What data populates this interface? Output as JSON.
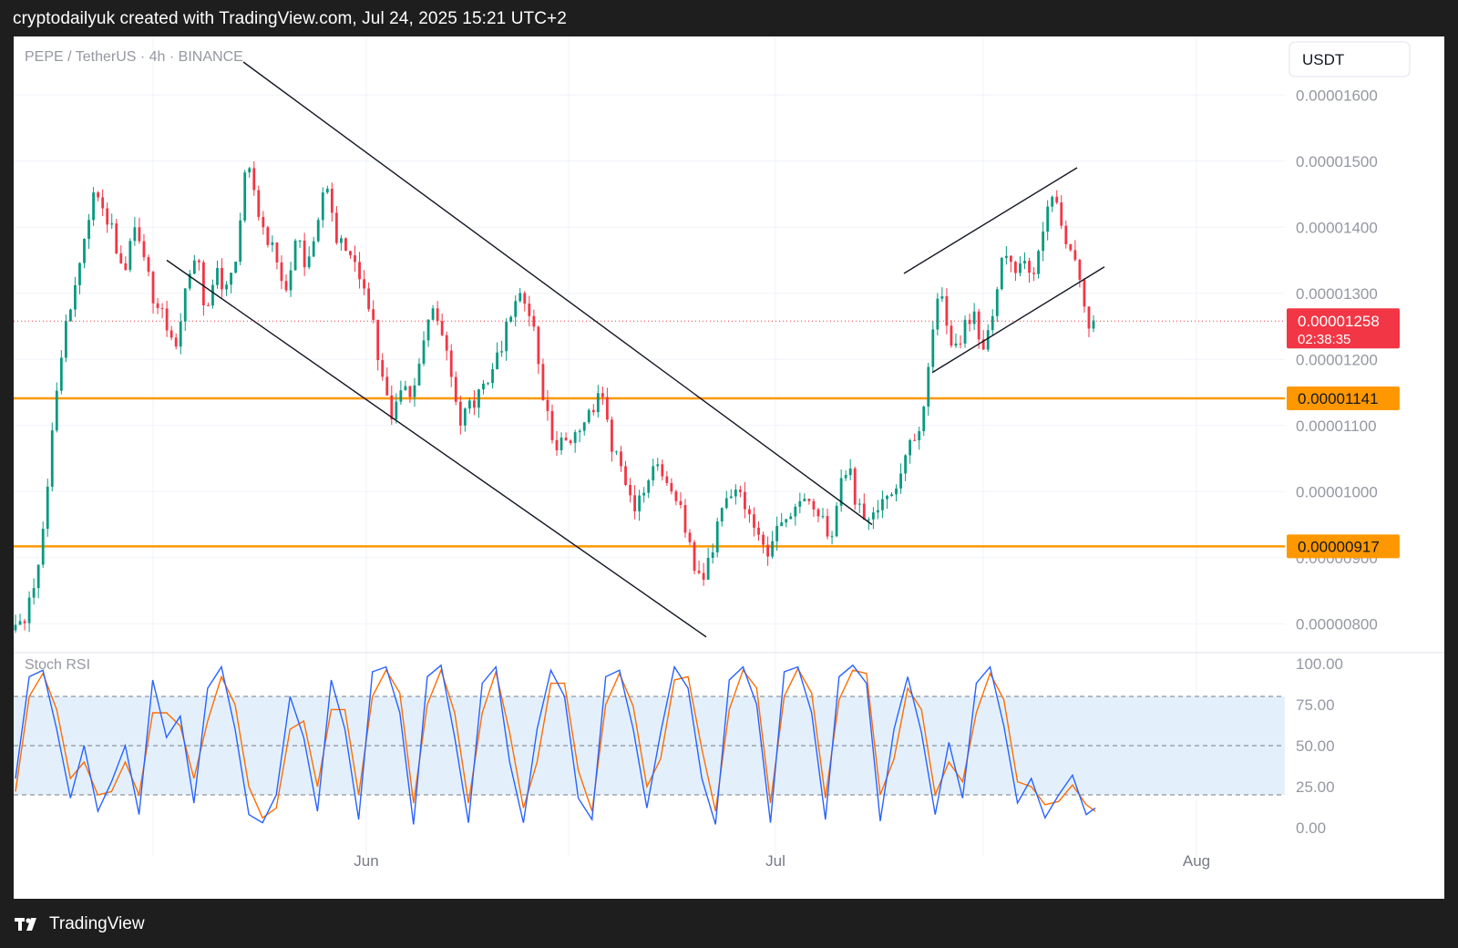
{
  "caption": "cryptodailyuk created with TradingView.com, Jul 24, 2025 15:21 UTC+2",
  "footer_brand": "TradingView",
  "colors": {
    "up": "#089981",
    "down": "#f23645",
    "level": "#ff9800",
    "stoch_k": "#2962ff",
    "stoch_d": "#ff6d00",
    "band": "#e3f0fc",
    "last_price": "#f23645"
  },
  "chart_data": [
    {
      "type": "candlestick",
      "symbol_line": "PEPE / TetherUS · 4h · BINANCE",
      "currency_button": "USDT",
      "ylim": [
        7.7e-06,
        1.65e-05
      ],
      "y_ticks": [
        "0.00000800",
        "0.00000900",
        "0.00001000",
        "0.00001100",
        "0.00001200",
        "0.00001300",
        "0.00001400",
        "0.00001500",
        "0.00001600"
      ],
      "x_ticks": [
        "Jun",
        "Jul",
        "Aug"
      ],
      "last_price": {
        "value": 1.258e-05,
        "label": "0.00001258",
        "countdown": "02:38:35"
      },
      "levels": [
        {
          "value": 1.141e-05,
          "label": "0.00001141"
        },
        {
          "value": 9.17e-06,
          "label": "0.00000917"
        }
      ],
      "series_path": [
        [
          0,
          7.9e-06
        ],
        [
          8,
          8.1e-06
        ],
        [
          16,
          8.8e-06
        ],
        [
          22,
          9.8e-06
        ],
        [
          28,
          1.12e-05
        ],
        [
          34,
          1.23e-05
        ],
        [
          42,
          1.3e-05
        ],
        [
          50,
          1.38e-05
        ],
        [
          56,
          1.46e-05
        ],
        [
          62,
          1.42e-05
        ],
        [
          70,
          1.39e-05
        ],
        [
          78,
          1.32e-05
        ],
        [
          86,
          1.41e-05
        ],
        [
          94,
          1.35e-05
        ],
        [
          100,
          1.28e-05
        ],
        [
          108,
          1.26e-05
        ],
        [
          114,
          1.2e-05
        ],
        [
          122,
          1.32e-05
        ],
        [
          130,
          1.37e-05
        ],
        [
          136,
          1.27e-05
        ],
        [
          144,
          1.34e-05
        ],
        [
          152,
          1.3e-05
        ],
        [
          160,
          1.38e-05
        ],
        [
          166,
          1.5e-05
        ],
        [
          172,
          1.45e-05
        ],
        [
          178,
          1.4e-05
        ],
        [
          186,
          1.36e-05
        ],
        [
          194,
          1.3e-05
        ],
        [
          202,
          1.38e-05
        ],
        [
          210,
          1.34e-05
        ],
        [
          218,
          1.43e-05
        ],
        [
          224,
          1.46e-05
        ],
        [
          230,
          1.39e-05
        ],
        [
          236,
          1.36e-05
        ],
        [
          242,
          1.37e-05
        ],
        [
          250,
          1.3e-05
        ],
        [
          256,
          1.26e-05
        ],
        [
          262,
          1.18e-05
        ],
        [
          270,
          1.12e-05
        ],
        [
          278,
          1.16e-05
        ],
        [
          286,
          1.15e-05
        ],
        [
          294,
          1.24e-05
        ],
        [
          300,
          1.27e-05
        ],
        [
          306,
          1.25e-05
        ],
        [
          312,
          1.2e-05
        ],
        [
          318,
          1.1e-05
        ],
        [
          326,
          1.13e-05
        ],
        [
          334,
          1.15e-05
        ],
        [
          342,
          1.18e-05
        ],
        [
          350,
          1.22e-05
        ],
        [
          358,
          1.3e-05
        ],
        [
          366,
          1.28e-05
        ],
        [
          372,
          1.25e-05
        ],
        [
          380,
          1.13e-05
        ],
        [
          388,
          1.06e-05
        ],
        [
          396,
          1.08e-05
        ],
        [
          404,
          1.1e-05
        ],
        [
          412,
          1.12e-05
        ],
        [
          420,
          1.15e-05
        ],
        [
          428,
          1.07e-05
        ],
        [
          436,
          1.03e-05
        ],
        [
          444,
          9.8e-06
        ],
        [
          452,
          1.01e-05
        ],
        [
          460,
          1.04e-05
        ],
        [
          468,
          1.02e-05
        ],
        [
          476,
          9.8e-06
        ],
        [
          482,
          9.4e-06
        ],
        [
          488,
          8.8e-06
        ],
        [
          494,
          8.6e-06
        ],
        [
          500,
          9.1e-06
        ],
        [
          508,
          9.9e-06
        ],
        [
          516,
          1.01e-05
        ],
        [
          524,
          9.7e-06
        ],
        [
          532,
          9.4e-06
        ],
        [
          540,
          9.1e-06
        ],
        [
          548,
          9.4e-06
        ],
        [
          556,
          9.7e-06
        ],
        [
          564,
          1e-05
        ],
        [
          572,
          9.9e-06
        ],
        [
          580,
          9.5e-06
        ],
        [
          586,
          9.3e-06
        ],
        [
          592,
          1.01e-05
        ],
        [
          598,
          1.04e-05
        ],
        [
          604,
          9.8e-06
        ],
        [
          612,
          9.6e-06
        ],
        [
          620,
          9.8e-06
        ],
        [
          628,
          1e-05
        ],
        [
          636,
          1.03e-05
        ],
        [
          644,
          1.08e-05
        ],
        [
          650,
          1.1e-05
        ],
        [
          654,
          1.17e-05
        ],
        [
          658,
          1.24e-05
        ],
        [
          664,
          1.3e-05
        ],
        [
          670,
          1.24e-05
        ],
        [
          676,
          1.22e-05
        ],
        [
          682,
          1.25e-05
        ],
        [
          688,
          1.27e-05
        ],
        [
          694,
          1.22e-05
        ],
        [
          700,
          1.26e-05
        ],
        [
          706,
          1.33e-05
        ],
        [
          712,
          1.37e-05
        ],
        [
          718,
          1.32e-05
        ],
        [
          724,
          1.36e-05
        ],
        [
          730,
          1.31e-05
        ],
        [
          736,
          1.38e-05
        ],
        [
          742,
          1.44e-05
        ],
        [
          748,
          1.43e-05
        ],
        [
          754,
          1.38e-05
        ],
        [
          760,
          1.36e-05
        ],
        [
          766,
          1.31e-05
        ],
        [
          770,
          1.25e-05
        ],
        [
          774,
          1.26e-05
        ]
      ],
      "trendlines": [
        {
          "name": "downtrend-channel-upper",
          "points": [
            [
              0,
              1.65e-05
            ],
            [
              1000,
              8.6e-06
            ]
          ]
        },
        {
          "name": "downtrend-channel-lower",
          "points": [
            [
              0,
              1.34e-05
            ],
            [
              1000,
              6.9e-06
            ]
          ]
        },
        {
          "name": "rising-channel-upper",
          "points": [
            [
              0,
              1.17e-05
            ],
            [
              1000,
              1.76e-05
            ]
          ]
        },
        {
          "name": "rising-channel-lower",
          "points": [
            [
              0,
              9.7e-06
            ],
            [
              1000,
              1.52e-05
            ]
          ]
        }
      ]
    },
    {
      "type": "line",
      "label": "Stoch RSI",
      "ylim": [
        0,
        100
      ],
      "y_ticks": [
        "0.00",
        "25.00",
        "50.00",
        "75.00",
        "100.00"
      ],
      "band": [
        20,
        80
      ],
      "mid": 50,
      "k_anchors": [
        [
          0,
          30
        ],
        [
          3,
          92
        ],
        [
          6,
          96
        ],
        [
          9,
          60
        ],
        [
          12,
          18
        ],
        [
          15,
          50
        ],
        [
          18,
          10
        ],
        [
          21,
          28
        ],
        [
          24,
          50
        ],
        [
          27,
          8
        ],
        [
          30,
          90
        ],
        [
          33,
          55
        ],
        [
          36,
          68
        ],
        [
          39,
          15
        ],
        [
          42,
          85
        ],
        [
          45,
          98
        ],
        [
          48,
          60
        ],
        [
          51,
          8
        ],
        [
          54,
          3
        ],
        [
          57,
          20
        ],
        [
          60,
          80
        ],
        [
          63,
          55
        ],
        [
          66,
          10
        ],
        [
          69,
          90
        ],
        [
          72,
          60
        ],
        [
          75,
          5
        ],
        [
          78,
          95
        ],
        [
          81,
          98
        ],
        [
          84,
          70
        ],
        [
          87,
          2
        ],
        [
          90,
          92
        ],
        [
          93,
          99
        ],
        [
          96,
          55
        ],
        [
          99,
          3
        ],
        [
          102,
          88
        ],
        [
          105,
          98
        ],
        [
          108,
          40
        ],
        [
          111,
          3
        ],
        [
          114,
          60
        ],
        [
          117,
          96
        ],
        [
          120,
          80
        ],
        [
          123,
          18
        ],
        [
          126,
          5
        ],
        [
          129,
          92
        ],
        [
          132,
          96
        ],
        [
          135,
          60
        ],
        [
          138,
          12
        ],
        [
          141,
          58
        ],
        [
          144,
          98
        ],
        [
          147,
          85
        ],
        [
          150,
          30
        ],
        [
          153,
          2
        ],
        [
          156,
          90
        ],
        [
          159,
          98
        ],
        [
          162,
          75
        ],
        [
          165,
          3
        ],
        [
          168,
          95
        ],
        [
          171,
          98
        ],
        [
          174,
          70
        ],
        [
          177,
          5
        ],
        [
          180,
          92
        ],
        [
          183,
          99
        ],
        [
          186,
          88
        ],
        [
          189,
          4
        ],
        [
          192,
          60
        ],
        [
          195,
          92
        ],
        [
          198,
          58
        ],
        [
          201,
          8
        ],
        [
          204,
          52
        ],
        [
          207,
          18
        ],
        [
          210,
          88
        ],
        [
          213,
          98
        ],
        [
          216,
          62
        ],
        [
          219,
          15
        ],
        [
          222,
          30
        ],
        [
          225,
          6
        ],
        [
          228,
          20
        ],
        [
          231,
          32
        ],
        [
          234,
          8
        ],
        [
          236,
          12
        ]
      ],
      "d_anchors": [
        [
          0,
          22
        ],
        [
          3,
          80
        ],
        [
          6,
          94
        ],
        [
          9,
          72
        ],
        [
          12,
          30
        ],
        [
          15,
          40
        ],
        [
          18,
          20
        ],
        [
          21,
          22
        ],
        [
          24,
          40
        ],
        [
          27,
          20
        ],
        [
          30,
          70
        ],
        [
          33,
          70
        ],
        [
          36,
          62
        ],
        [
          39,
          30
        ],
        [
          42,
          65
        ],
        [
          45,
          92
        ],
        [
          48,
          75
        ],
        [
          51,
          25
        ],
        [
          54,
          6
        ],
        [
          57,
          12
        ],
        [
          60,
          60
        ],
        [
          63,
          65
        ],
        [
          66,
          25
        ],
        [
          69,
          72
        ],
        [
          72,
          72
        ],
        [
          75,
          20
        ],
        [
          78,
          80
        ],
        [
          81,
          96
        ],
        [
          84,
          82
        ],
        [
          87,
          15
        ],
        [
          90,
          75
        ],
        [
          93,
          96
        ],
        [
          96,
          70
        ],
        [
          99,
          15
        ],
        [
          102,
          70
        ],
        [
          105,
          95
        ],
        [
          108,
          58
        ],
        [
          111,
          12
        ],
        [
          114,
          40
        ],
        [
          117,
          88
        ],
        [
          120,
          88
        ],
        [
          123,
          35
        ],
        [
          126,
          10
        ],
        [
          129,
          75
        ],
        [
          132,
          94
        ],
        [
          135,
          74
        ],
        [
          138,
          25
        ],
        [
          141,
          42
        ],
        [
          144,
          90
        ],
        [
          147,
          92
        ],
        [
          150,
          48
        ],
        [
          153,
          10
        ],
        [
          156,
          72
        ],
        [
          159,
          96
        ],
        [
          162,
          85
        ],
        [
          165,
          15
        ],
        [
          168,
          80
        ],
        [
          171,
          97
        ],
        [
          174,
          82
        ],
        [
          177,
          18
        ],
        [
          180,
          78
        ],
        [
          183,
          96
        ],
        [
          186,
          94
        ],
        [
          189,
          20
        ],
        [
          192,
          42
        ],
        [
          195,
          85
        ],
        [
          198,
          72
        ],
        [
          201,
          20
        ],
        [
          204,
          40
        ],
        [
          207,
          28
        ],
        [
          210,
          70
        ],
        [
          213,
          94
        ],
        [
          216,
          78
        ],
        [
          219,
          28
        ],
        [
          222,
          25
        ],
        [
          225,
          14
        ],
        [
          228,
          16
        ],
        [
          231,
          26
        ],
        [
          234,
          14
        ],
        [
          236,
          10
        ]
      ]
    }
  ]
}
